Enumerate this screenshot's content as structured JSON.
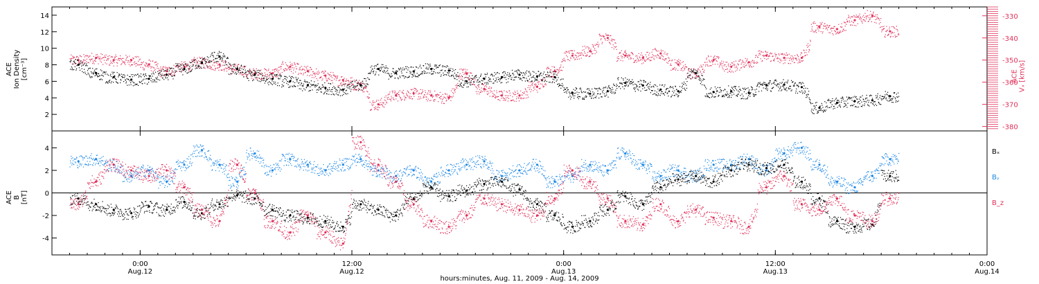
{
  "chart_data": [
    {
      "type": "scatter",
      "y_left": {
        "label_lines": [
          "ACE",
          "Ion Density",
          "[cm⁻³]"
        ],
        "range": [
          0,
          15
        ],
        "ticks": [
          2,
          4,
          6,
          8,
          10,
          12,
          14
        ]
      },
      "y_right": {
        "label_lines": [
          "ACE",
          "Vₓ [km/s]"
        ],
        "range": [
          -382,
          -326
        ],
        "ticks": [
          -330,
          -340,
          -350,
          -360,
          -370,
          -380
        ],
        "color": "#e0305a"
      },
      "series": [
        {
          "color": "#000000",
          "axis": "left",
          "x": [
            -3.5,
            -2.5,
            -1.5,
            -0.5,
            0.5,
            1.5,
            2.5,
            3.5,
            4.5,
            5.5,
            6.5,
            7.5,
            8.5,
            9.5,
            10.5,
            11.5,
            12.5,
            13.5,
            14.5,
            15.5,
            16.5,
            17.5,
            18.5,
            19.5,
            20.5,
            21.5,
            22.5,
            23.5,
            24.5,
            25.5,
            26.5,
            27.5,
            28.5,
            29.5,
            30.5,
            31.5,
            32.5,
            33.5,
            34.5,
            35.5,
            36.5,
            37.5,
            38.5,
            39.5,
            40.5,
            41.5,
            42.5
          ],
          "values": [
            8.0,
            7.0,
            6.5,
            6.2,
            6.3,
            6.8,
            7.5,
            8.2,
            9.0,
            7.5,
            6.8,
            6.3,
            6.0,
            5.5,
            5.2,
            5.0,
            5.5,
            7.5,
            7.0,
            7.2,
            7.5,
            7.3,
            6.0,
            6.3,
            6.5,
            6.8,
            6.6,
            6.5,
            4.6,
            4.5,
            4.8,
            5.8,
            5.5,
            5.0,
            4.8,
            7.0,
            4.7,
            4.8,
            4.6,
            5.5,
            5.6,
            5.3,
            2.8,
            3.4,
            3.6,
            3.7,
            4.2
          ]
        },
        {
          "color": "#e0305a",
          "axis": "right",
          "x": [
            -3.5,
            -2.5,
            -1.5,
            -0.5,
            0.5,
            1.5,
            2.5,
            3.5,
            4.5,
            5.5,
            6.5,
            7.5,
            8.5,
            9.5,
            10.5,
            11.5,
            12.5,
            13.5,
            14.5,
            15.5,
            16.5,
            17.5,
            18.5,
            19.5,
            20.5,
            21.5,
            22.5,
            23.5,
            24.5,
            25.5,
            26.5,
            27.5,
            28.5,
            29.5,
            30.5,
            31.5,
            32.5,
            33.5,
            34.5,
            35.5,
            36.5,
            37.5,
            38.5,
            39.5,
            40.5,
            41.5,
            42.5
          ],
          "values": [
            -350,
            -349,
            -350,
            -350,
            -352,
            -355,
            -353,
            -351,
            -352,
            -354,
            -356,
            -356,
            -353,
            -355,
            -357,
            -359,
            -361,
            -370,
            -366,
            -365,
            -366,
            -367,
            -356,
            -363,
            -366,
            -366,
            -362,
            -355,
            -348,
            -346,
            -340,
            -348,
            -349,
            -347,
            -352,
            -356,
            -350,
            -353,
            -351,
            -348,
            -349,
            -349,
            -335,
            -336,
            -332,
            -330,
            -337
          ]
        }
      ]
    },
    {
      "type": "scatter",
      "y_left": {
        "label_lines": [
          "ACE",
          "B",
          "[nT]"
        ],
        "range": [
          -5.5,
          5.5
        ],
        "ticks": [
          -4,
          -2,
          0,
          2,
          4
        ]
      },
      "series": [
        {
          "name": "Bₓ",
          "color": "#000000",
          "x": [
            -3.5,
            -2.5,
            -1.5,
            -0.5,
            0.5,
            1.5,
            2.5,
            3.5,
            4.5,
            5.5,
            6.5,
            7.5,
            8.5,
            9.5,
            10.5,
            11.5,
            12.5,
            13.5,
            14.5,
            15.5,
            16.5,
            17.5,
            18.5,
            19.5,
            20.5,
            21.5,
            22.5,
            23.5,
            24.5,
            25.5,
            26.5,
            27.5,
            28.5,
            29.5,
            30.5,
            31.5,
            32.5,
            33.5,
            34.5,
            35.5,
            36.5,
            37.5,
            38.5,
            39.5,
            40.5,
            41.5,
            42.5
          ],
          "values": [
            -0.5,
            -1.0,
            -1.5,
            -1.8,
            -1.2,
            -1.5,
            -0.8,
            -1.8,
            -1.0,
            -0.2,
            -0.5,
            -1.5,
            -2.0,
            -2.2,
            -2.5,
            -3.0,
            -1.0,
            -1.5,
            -2.0,
            -0.5,
            0.5,
            -0.3,
            0.2,
            0.8,
            1.0,
            0.3,
            -1.0,
            -2.0,
            -3.0,
            -2.5,
            -1.5,
            -0.3,
            -1.0,
            0.5,
            1.2,
            1.5,
            1.0,
            2.0,
            2.5,
            2.2,
            2.5,
            1.0,
            -0.5,
            -2.5,
            -3.0,
            -2.8,
            1.5
          ]
        },
        {
          "name": "Bᵧ",
          "color": "#1e88e5",
          "x": [
            -3.5,
            -2.5,
            -1.5,
            -0.5,
            0.5,
            1.5,
            2.5,
            3.5,
            4.5,
            5.5,
            6.5,
            7.5,
            8.5,
            9.5,
            10.5,
            11.5,
            12.5,
            13.5,
            14.5,
            15.5,
            16.5,
            17.5,
            18.5,
            19.5,
            20.5,
            21.5,
            22.5,
            23.5,
            24.5,
            25.5,
            26.5,
            27.5,
            28.5,
            29.5,
            30.5,
            31.5,
            32.5,
            33.5,
            34.5,
            35.5,
            36.5,
            37.5,
            38.5,
            39.5,
            40.5,
            41.5,
            42.5
          ],
          "values": [
            2.8,
            3.0,
            2.5,
            1.5,
            2.0,
            1.0,
            2.5,
            3.8,
            2.5,
            1.0,
            3.5,
            2.0,
            3.0,
            2.5,
            2.0,
            2.5,
            3.0,
            2.0,
            1.5,
            2.0,
            1.0,
            2.0,
            2.5,
            2.8,
            1.5,
            2.0,
            2.5,
            1.0,
            1.5,
            2.5,
            2.0,
            3.5,
            2.5,
            1.5,
            2.0,
            1.5,
            2.5,
            2.5,
            3.0,
            2.0,
            3.5,
            4.0,
            2.5,
            1.0,
            0.5,
            1.5,
            3.0
          ]
        },
        {
          "name": "B_z",
          "color": "#e0305a",
          "x": [
            -3.5,
            -2.5,
            -1.5,
            -0.5,
            0.5,
            1.5,
            2.5,
            3.5,
            4.5,
            5.5,
            6.5,
            7.5,
            8.5,
            9.5,
            10.5,
            11.5,
            12.5,
            13.5,
            14.5,
            15.5,
            16.5,
            17.5,
            18.5,
            19.5,
            20.5,
            21.5,
            22.5,
            23.5,
            24.5,
            25.5,
            26.5,
            27.5,
            28.5,
            29.5,
            30.5,
            31.5,
            32.5,
            33.5,
            34.5,
            35.5,
            36.5,
            37.5,
            38.5,
            39.5,
            40.5,
            41.5,
            42.5
          ],
          "values": [
            -1.0,
            1.0,
            2.5,
            2.0,
            1.5,
            2.0,
            0.5,
            -1.5,
            -2.5,
            2.5,
            0.0,
            -2.5,
            -3.5,
            -2.0,
            -3.5,
            -4.5,
            4.5,
            2.5,
            1.0,
            -1.0,
            -2.5,
            -3.0,
            -2.0,
            -0.5,
            -1.0,
            -1.5,
            -2.0,
            -0.5,
            2.0,
            1.0,
            -0.5,
            -2.5,
            -2.8,
            -1.0,
            -2.5,
            -1.5,
            -2.2,
            -2.5,
            -3.0,
            0.5,
            1.5,
            -1.0,
            -1.5,
            -0.5,
            -2.0,
            -2.5,
            -0.5
          ]
        }
      ]
    }
  ],
  "x_axis": {
    "range": [
      -5,
      48
    ],
    "ticks": [
      {
        "x": 0,
        "line1": "0:00",
        "line2": "Aug.12"
      },
      {
        "x": 12,
        "line1": "12:00",
        "line2": "Aug.12"
      },
      {
        "x": 24,
        "line1": "0:00",
        "line2": "Aug.13"
      },
      {
        "x": 36,
        "line1": "12:00",
        "line2": "Aug.13"
      },
      {
        "x": 48,
        "line1": "0:00",
        "line2": "Aug.14"
      }
    ],
    "label": "hours:minutes, Aug. 11, 2009 - Aug. 14, 2009"
  }
}
